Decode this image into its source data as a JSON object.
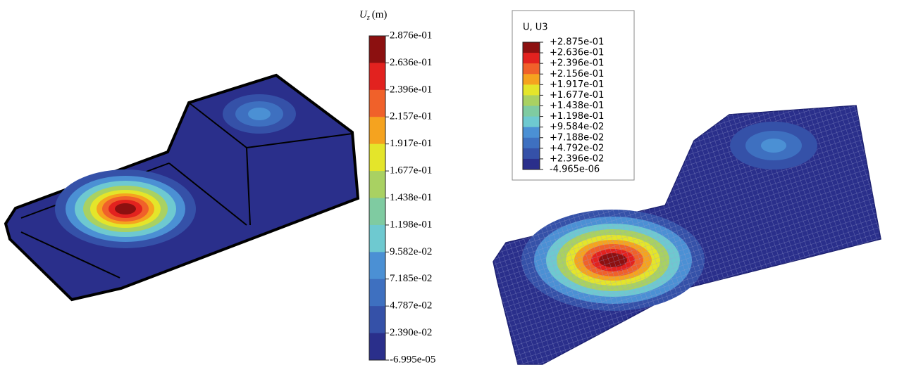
{
  "left_colorbar": {
    "title": {
      "symbol": "U",
      "subscript": "z",
      "unit": "(m)"
    },
    "labels": [
      "2.876e-01",
      "2.636e-01",
      "2.396e-01",
      "2.157e-01",
      "1.917e-01",
      "1.677e-01",
      "1.438e-01",
      "1.198e-01",
      "9.582e-02",
      "7.185e-02",
      "4.787e-02",
      "2.390e-02",
      "-6.995e-05"
    ],
    "colors": [
      "#8c1010",
      "#e2221f",
      "#f0612a",
      "#f5a31f",
      "#e4e52a",
      "#a9d162",
      "#7fcba1",
      "#6ec9d0",
      "#4b90d4",
      "#3e70c0",
      "#3551a8",
      "#2a2f8b"
    ]
  },
  "right_legend": {
    "title": "U, U3",
    "labels": [
      "+2.875e-01",
      "+2.636e-01",
      "+2.396e-01",
      "+2.156e-01",
      "+1.917e-01",
      "+1.677e-01",
      "+1.438e-01",
      "+1.198e-01",
      "+9.584e-02",
      "+7.188e-02",
      "+4.792e-02",
      "+2.396e-02",
      "-4.965e-06"
    ],
    "colors": [
      "#8c1010",
      "#e2221f",
      "#f0612a",
      "#f5a31f",
      "#e4e52a",
      "#a9d162",
      "#7fcba1",
      "#6ec9d0",
      "#4b90d4",
      "#3e70c0",
      "#3551a8",
      "#2a2f8b"
    ]
  }
}
